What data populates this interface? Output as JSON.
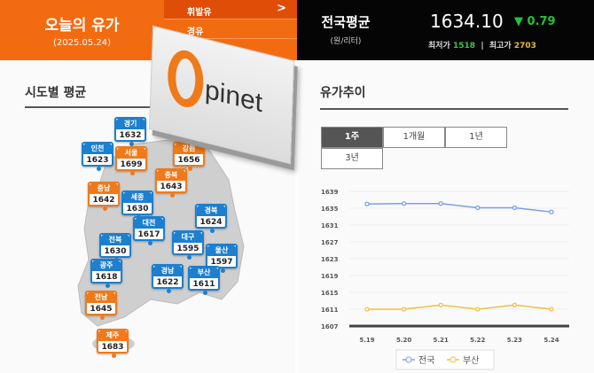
{
  "header": {
    "title": "오늘의 유가",
    "date": "(2025.05.24)",
    "menu": [
      {
        "label": "휘발유",
        "active": true
      },
      {
        "label": "경유",
        "active": false
      }
    ],
    "national_avg": {
      "label": "전국평균",
      "unit": "(원/리터)",
      "price": "1634.10",
      "change": "▼ 0.79",
      "min_label": "최저가",
      "min": "1518",
      "max_label": "최고가",
      "max": "2703"
    }
  },
  "logo": {
    "text": "Opinet"
  },
  "left": {
    "title": "시도별 평균",
    "regions": [
      {
        "name": "경기",
        "value": "1632",
        "color": "blue"
      },
      {
        "name": "인천",
        "value": "1623",
        "color": "blue"
      },
      {
        "name": "서울",
        "value": "1699",
        "color": "orange"
      },
      {
        "name": "강원",
        "value": "1656",
        "color": "orange"
      },
      {
        "name": "충북",
        "value": "1643",
        "color": "orange"
      },
      {
        "name": "충남",
        "value": "1642",
        "color": "orange"
      },
      {
        "name": "세종",
        "value": "1630",
        "color": "blue"
      },
      {
        "name": "경북",
        "value": "1624",
        "color": "blue"
      },
      {
        "name": "대전",
        "value": "1617",
        "color": "blue"
      },
      {
        "name": "대구",
        "value": "1595",
        "color": "blue"
      },
      {
        "name": "전북",
        "value": "1630",
        "color": "blue"
      },
      {
        "name": "울산",
        "value": "1597",
        "color": "blue"
      },
      {
        "name": "광주",
        "value": "1618",
        "color": "blue"
      },
      {
        "name": "경남",
        "value": "1622",
        "color": "blue"
      },
      {
        "name": "부산",
        "value": "1611",
        "color": "blue"
      },
      {
        "name": "전남",
        "value": "1645",
        "color": "orange"
      },
      {
        "name": "제주",
        "value": "1683",
        "color": "orange"
      }
    ]
  },
  "right": {
    "title": "유가추이",
    "tabs": [
      {
        "label": "1주",
        "active": true
      },
      {
        "label": "1개월"
      },
      {
        "label": "1년"
      },
      {
        "label": "3년"
      }
    ]
  },
  "chart_data": {
    "type": "line",
    "categories": [
      "5.19",
      "5.20",
      "5.21",
      "5.22",
      "5.23",
      "5.24"
    ],
    "ylim": [
      1607,
      1639
    ],
    "yticks": [
      1607,
      1611,
      1615,
      1619,
      1623,
      1627,
      1631,
      1635,
      1639
    ],
    "grid": true,
    "legend": "bottom",
    "series": [
      {
        "name": "전국",
        "values": [
          1636.0,
          1636.1,
          1636.1,
          1635.1,
          1635.1,
          1634.1
        ],
        "color": "#7b9fe6"
      },
      {
        "name": "부산",
        "values": [
          1611,
          1611,
          1612,
          1611,
          1612,
          1611
        ],
        "color": "#f0c040"
      }
    ]
  }
}
